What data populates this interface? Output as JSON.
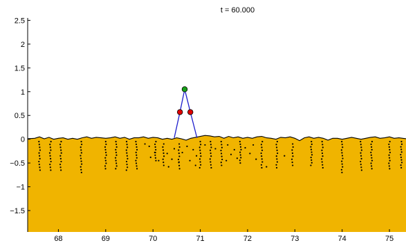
{
  "chart_data": {
    "type": "scatter",
    "title": "t = 60.000",
    "xlabel": "",
    "ylabel": "",
    "xlim": [
      67.35,
      75.35
    ],
    "ylim": [
      -1.95,
      2.55
    ],
    "x_ticks": [
      68,
      69,
      70,
      71,
      72,
      73,
      74,
      75
    ],
    "x_tick_labels": [
      "68",
      "69",
      "70",
      "71",
      "72",
      "73",
      "74",
      "75"
    ],
    "y_ticks": [
      2.5,
      2,
      1.5,
      1,
      0.5,
      0,
      -0.5,
      -1,
      -1.5
    ],
    "y_tick_labels": [
      "2.5",
      "2",
      "1.5",
      "1",
      "0.5",
      "0",
      "−0.5",
      "−1",
      "−1.5"
    ],
    "grid": false,
    "colors": {
      "fluid": "#f0b400",
      "surface_line": "#000000",
      "particles": "#000000",
      "frame": "#1c1ccc",
      "hinge": "#e00000",
      "tip": "#18a018"
    },
    "frame": {
      "base_left": [
        70.45,
        0.03
      ],
      "hinge_left": [
        70.57,
        0.57
      ],
      "tip": [
        70.67,
        1.05
      ],
      "hinge_right": [
        70.79,
        0.57
      ],
      "base_right": [
        70.93,
        0.03
      ]
    },
    "surface": [
      [
        67.35,
        0.01
      ],
      [
        67.5,
        0.02
      ],
      [
        67.6,
        0.05
      ],
      [
        67.7,
        0.01
      ],
      [
        67.8,
        0.04
      ],
      [
        67.9,
        0.0
      ],
      [
        68.0,
        0.02
      ],
      [
        68.1,
        0.03
      ],
      [
        68.2,
        0.0
      ],
      [
        68.3,
        0.02
      ],
      [
        68.4,
        0.0
      ],
      [
        68.5,
        0.03
      ],
      [
        68.6,
        0.05
      ],
      [
        68.7,
        0.02
      ],
      [
        68.8,
        0.04
      ],
      [
        68.9,
        0.03
      ],
      [
        69.0,
        0.02
      ],
      [
        69.1,
        0.03
      ],
      [
        69.2,
        0.05
      ],
      [
        69.3,
        0.02
      ],
      [
        69.4,
        0.04
      ],
      [
        69.5,
        0.0
      ],
      [
        69.6,
        0.03
      ],
      [
        69.7,
        0.03
      ],
      [
        69.8,
        0.05
      ],
      [
        69.9,
        0.02
      ],
      [
        70.0,
        0.04
      ],
      [
        70.1,
        0.03
      ],
      [
        70.2,
        0.0
      ],
      [
        70.3,
        0.02
      ],
      [
        70.4,
        0.0
      ],
      [
        70.5,
        0.03
      ],
      [
        70.6,
        0.01
      ],
      [
        70.7,
        -0.02
      ],
      [
        70.8,
        0.02
      ],
      [
        70.9,
        0.04
      ],
      [
        71.0,
        0.06
      ],
      [
        71.1,
        0.08
      ],
      [
        71.2,
        0.07
      ],
      [
        71.3,
        0.05
      ],
      [
        71.4,
        0.06
      ],
      [
        71.5,
        0.02
      ],
      [
        71.6,
        0.06
      ],
      [
        71.7,
        0.03
      ],
      [
        71.8,
        0.05
      ],
      [
        71.9,
        0.02
      ],
      [
        72.0,
        0.04
      ],
      [
        72.1,
        0.02
      ],
      [
        72.2,
        0.05
      ],
      [
        72.3,
        0.06
      ],
      [
        72.4,
        0.03
      ],
      [
        72.5,
        0.02
      ],
      [
        72.6,
        0.0
      ],
      [
        72.7,
        0.04
      ],
      [
        72.8,
        0.03
      ],
      [
        72.9,
        0.05
      ],
      [
        73.0,
        0.02
      ],
      [
        73.1,
        -0.03
      ],
      [
        73.2,
        0.03
      ],
      [
        73.3,
        0.05
      ],
      [
        73.4,
        0.02
      ],
      [
        73.5,
        0.04
      ],
      [
        73.6,
        0.02
      ],
      [
        73.7,
        -0.02
      ],
      [
        73.8,
        0.02
      ],
      [
        73.9,
        0.02
      ],
      [
        74.0,
        0.0
      ],
      [
        74.1,
        0.02
      ],
      [
        74.2,
        0.04
      ],
      [
        74.3,
        0.02
      ],
      [
        74.4,
        0.0
      ],
      [
        74.5,
        0.02
      ],
      [
        74.6,
        0.04
      ],
      [
        74.7,
        0.05
      ],
      [
        74.8,
        0.02
      ],
      [
        74.9,
        0.03
      ],
      [
        75.0,
        0.05
      ],
      [
        75.1,
        0.02
      ],
      [
        75.2,
        0.03
      ],
      [
        75.35,
        0.01
      ]
    ],
    "particle_columns": [
      {
        "x": 67.6,
        "y_top": -0.05,
        "y_bottom": -0.65,
        "count": 11
      },
      {
        "x": 67.83,
        "y_top": -0.05,
        "y_bottom": -0.65,
        "count": 11
      },
      {
        "x": 68.05,
        "y_top": -0.05,
        "y_bottom": -0.65,
        "count": 11
      },
      {
        "x": 68.48,
        "y_top": -0.05,
        "y_bottom": -0.7,
        "count": 12
      },
      {
        "x": 69.0,
        "y_top": -0.05,
        "y_bottom": -0.62,
        "count": 11
      },
      {
        "x": 69.22,
        "y_top": -0.05,
        "y_bottom": -0.62,
        "count": 11
      },
      {
        "x": 69.45,
        "y_top": -0.05,
        "y_bottom": -0.65,
        "count": 11
      },
      {
        "x": 69.65,
        "y_top": -0.05,
        "y_bottom": -0.62,
        "count": 11
      },
      {
        "x": 70.05,
        "y_top": -0.05,
        "y_bottom": -0.45,
        "count": 8
      },
      {
        "x": 70.22,
        "y_top": -0.1,
        "y_bottom": -0.55,
        "count": 8
      },
      {
        "x": 70.55,
        "y_top": -0.1,
        "y_bottom": -0.62,
        "count": 9
      },
      {
        "x": 71.0,
        "y_top": -0.05,
        "y_bottom": -0.6,
        "count": 10
      },
      {
        "x": 71.22,
        "y_top": -0.05,
        "y_bottom": -0.6,
        "count": 10
      },
      {
        "x": 71.45,
        "y_top": -0.05,
        "y_bottom": -0.55,
        "count": 9
      },
      {
        "x": 71.85,
        "y_top": -0.05,
        "y_bottom": -0.5,
        "count": 9
      },
      {
        "x": 72.3,
        "y_top": -0.05,
        "y_bottom": -0.6,
        "count": 10
      },
      {
        "x": 72.62,
        "y_top": -0.05,
        "y_bottom": -0.6,
        "count": 10
      },
      {
        "x": 72.95,
        "y_top": -0.1,
        "y_bottom": -0.55,
        "count": 8
      },
      {
        "x": 73.35,
        "y_top": -0.05,
        "y_bottom": -0.55,
        "count": 10
      },
      {
        "x": 73.58,
        "y_top": -0.05,
        "y_bottom": -0.6,
        "count": 10
      },
      {
        "x": 74.0,
        "y_top": -0.05,
        "y_bottom": -0.7,
        "count": 12
      },
      {
        "x": 74.4,
        "y_top": -0.05,
        "y_bottom": -0.65,
        "count": 11
      },
      {
        "x": 74.62,
        "y_top": -0.05,
        "y_bottom": -0.62,
        "count": 11
      },
      {
        "x": 75.0,
        "y_top": -0.05,
        "y_bottom": -0.62,
        "count": 11
      },
      {
        "x": 75.25,
        "y_top": -0.05,
        "y_bottom": -0.6,
        "count": 11
      }
    ],
    "particles_scattered": [
      [
        69.83,
        -0.1
      ],
      [
        69.92,
        -0.15
      ],
      [
        70.05,
        -0.28
      ],
      [
        69.95,
        -0.38
      ],
      [
        70.12,
        -0.45
      ],
      [
        70.3,
        -0.3
      ],
      [
        70.4,
        -0.42
      ],
      [
        70.33,
        -0.58
      ],
      [
        70.45,
        -0.2
      ],
      [
        70.62,
        -0.28
      ],
      [
        70.72,
        -0.15
      ],
      [
        70.85,
        -0.22
      ],
      [
        70.92,
        -0.35
      ],
      [
        70.78,
        -0.45
      ],
      [
        70.9,
        -0.55
      ],
      [
        71.1,
        -0.12
      ],
      [
        71.32,
        -0.2
      ],
      [
        71.58,
        -0.12
      ],
      [
        71.65,
        -0.32
      ],
      [
        71.72,
        -0.22
      ],
      [
        71.78,
        -0.4
      ],
      [
        71.95,
        -0.18
      ],
      [
        72.05,
        -0.3
      ],
      [
        72.12,
        -0.12
      ],
      [
        72.18,
        -0.42
      ],
      [
        70.55,
        -0.48
      ],
      [
        71.55,
        -0.45
      ],
      [
        72.4,
        -0.58
      ],
      [
        72.78,
        -0.35
      ]
    ]
  }
}
